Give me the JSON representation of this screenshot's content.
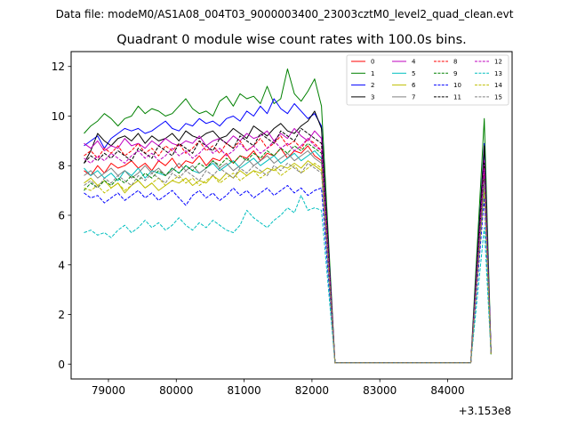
{
  "chart_data": {
    "type": "line",
    "suptitle": "Data file: modeM0/AS1A08_004T03_9000003400_23003cztM0_level2_quad_clean.evt",
    "title": "Quadrant 0 module wise count rates with 100.0s bins.",
    "xlabel": "",
    "ylabel": "",
    "x_offset_label": "+3.153e8",
    "xlim": [
      78450,
      84950
    ],
    "ylim": [
      -0.6,
      12.6
    ],
    "x_ticks": [
      79000,
      80000,
      81000,
      82000,
      83000,
      84000
    ],
    "x_tick_labels": [
      "79000",
      "80000",
      "81000",
      "82000",
      "83000",
      "84000"
    ],
    "y_ticks": [
      0,
      2,
      4,
      6,
      8,
      10,
      12
    ],
    "y_tick_labels": [
      "0",
      "2",
      "4",
      "6",
      "8",
      "10",
      "12"
    ],
    "legend": {
      "position": "top-right",
      "columns": 4
    },
    "x": [
      78640,
      78740,
      78840,
      78940,
      79040,
      79140,
      79240,
      79340,
      79440,
      79540,
      79640,
      79740,
      79840,
      79940,
      80040,
      80140,
      80240,
      80340,
      80440,
      80540,
      80640,
      80740,
      80840,
      80940,
      81040,
      81140,
      81240,
      81340,
      81440,
      81540,
      81640,
      81740,
      81840,
      81940,
      82040,
      82140,
      82340,
      84340,
      84540,
      84640
    ],
    "series": [
      {
        "name": "0",
        "color": "#ff0000",
        "dash": false,
        "values": [
          7.8,
          7.6,
          8.0,
          7.7,
          8.1,
          7.9,
          8.0,
          8.2,
          7.9,
          8.1,
          7.8,
          8.2,
          8.0,
          8.3,
          7.9,
          8.2,
          8.1,
          8.4,
          8.0,
          8.3,
          8.2,
          8.5,
          8.1,
          8.4,
          8.3,
          8.6,
          8.2,
          8.5,
          8.4,
          8.7,
          8.3,
          8.6,
          8.5,
          8.8,
          8.4,
          8.2,
          0.05,
          0.05,
          7.8,
          0.5
        ]
      },
      {
        "name": "1",
        "color": "#008000",
        "dash": false,
        "values": [
          9.3,
          9.6,
          9.8,
          10.1,
          9.9,
          9.6,
          9.9,
          10.0,
          10.4,
          10.1,
          10.3,
          10.2,
          10.0,
          10.1,
          10.4,
          10.7,
          10.3,
          10.1,
          10.2,
          10.0,
          10.6,
          10.8,
          10.4,
          10.9,
          10.7,
          10.8,
          10.5,
          11.2,
          10.5,
          10.7,
          11.9,
          10.9,
          10.6,
          11.0,
          11.5,
          10.4,
          0.05,
          0.05,
          9.9,
          0.5
        ]
      },
      {
        "name": "2",
        "color": "#0000ff",
        "dash": false,
        "values": [
          8.8,
          9.0,
          9.2,
          8.7,
          9.1,
          9.3,
          9.5,
          9.4,
          9.5,
          9.3,
          9.4,
          9.6,
          9.8,
          9.5,
          9.4,
          9.7,
          9.6,
          9.9,
          9.7,
          9.8,
          9.6,
          9.9,
          10.0,
          9.8,
          10.2,
          10.0,
          10.4,
          10.1,
          10.7,
          10.3,
          10.1,
          10.5,
          10.2,
          9.9,
          10.1,
          9.6,
          0.05,
          0.05,
          8.9,
          0.5
        ]
      },
      {
        "name": "3",
        "color": "#000000",
        "dash": false,
        "values": [
          8.1,
          8.6,
          9.3,
          9.0,
          8.8,
          9.1,
          9.2,
          9.0,
          9.3,
          8.9,
          9.2,
          9.0,
          9.1,
          9.3,
          9.0,
          9.4,
          9.2,
          9.1,
          9.3,
          9.4,
          9.1,
          9.2,
          9.5,
          9.3,
          9.1,
          9.6,
          9.4,
          9.2,
          9.5,
          9.7,
          9.4,
          9.3,
          9.6,
          9.8,
          10.2,
          9.5,
          0.05,
          0.05,
          8.8,
          0.4
        ]
      },
      {
        "name": "4",
        "color": "#bf00bf",
        "dash": false,
        "values": [
          8.9,
          8.7,
          9.0,
          8.6,
          8.8,
          8.7,
          9.1,
          8.8,
          8.9,
          8.7,
          9.0,
          8.8,
          9.1,
          8.9,
          8.8,
          9.0,
          8.9,
          9.2,
          8.8,
          9.0,
          9.1,
          8.9,
          9.2,
          9.0,
          9.3,
          9.1,
          9.2,
          9.4,
          9.0,
          9.3,
          9.1,
          9.5,
          9.2,
          9.0,
          9.4,
          9.1,
          0.05,
          0.05,
          8.2,
          0.5
        ]
      },
      {
        "name": "5",
        "color": "#00bfbf",
        "dash": false,
        "values": [
          7.9,
          7.6,
          7.8,
          7.5,
          7.7,
          7.4,
          7.8,
          7.6,
          7.9,
          7.5,
          7.8,
          7.7,
          7.6,
          7.9,
          7.7,
          8.0,
          7.8,
          7.7,
          7.9,
          8.1,
          7.8,
          8.0,
          8.2,
          7.9,
          8.1,
          8.3,
          8.0,
          8.2,
          8.4,
          8.1,
          8.3,
          8.5,
          8.2,
          8.4,
          8.6,
          8.3,
          0.05,
          0.05,
          7.5,
          0.4
        ]
      },
      {
        "name": "6",
        "color": "#bfbf00",
        "dash": false,
        "values": [
          7.3,
          7.5,
          7.2,
          7.4,
          7.1,
          7.3,
          6.9,
          7.2,
          7.4,
          7.1,
          7.3,
          7.0,
          7.2,
          7.4,
          7.3,
          7.5,
          7.2,
          7.4,
          7.3,
          7.6,
          7.4,
          7.7,
          7.5,
          7.8,
          7.6,
          7.8,
          7.7,
          7.9,
          7.8,
          8.0,
          7.9,
          8.1,
          7.9,
          8.2,
          8.0,
          7.8,
          0.05,
          0.05,
          7.2,
          0.4
        ]
      },
      {
        "name": "7",
        "color": "#808080",
        "dash": false,
        "values": [
          7.6,
          7.8,
          7.5,
          7.7,
          7.9,
          7.6,
          7.8,
          7.5,
          7.7,
          8.0,
          7.7,
          7.9,
          7.6,
          7.8,
          8.1,
          7.8,
          8.0,
          7.7,
          7.9,
          8.2,
          7.9,
          8.1,
          7.8,
          8.0,
          8.3,
          8.0,
          8.2,
          8.4,
          8.1,
          8.3,
          8.5,
          8.2,
          8.4,
          8.6,
          8.3,
          8.1,
          0.05,
          0.05,
          7.4,
          0.4
        ]
      },
      {
        "name": "8",
        "color": "#ff0000",
        "dash": true,
        "values": [
          8.4,
          8.6,
          8.3,
          8.7,
          8.5,
          8.8,
          8.4,
          8.6,
          8.9,
          8.5,
          8.7,
          8.4,
          8.8,
          8.6,
          8.9,
          8.5,
          8.7,
          9.0,
          8.6,
          8.8,
          8.5,
          8.9,
          8.7,
          9.0,
          8.6,
          8.8,
          9.1,
          8.7,
          8.9,
          9.2,
          8.8,
          9.0,
          8.7,
          9.1,
          8.9,
          8.6,
          0.05,
          0.05,
          8.0,
          0.4
        ]
      },
      {
        "name": "9",
        "color": "#008000",
        "dash": true,
        "values": [
          7.0,
          7.3,
          7.1,
          7.4,
          7.2,
          7.5,
          7.3,
          7.6,
          7.4,
          7.7,
          7.5,
          7.8,
          7.6,
          7.9,
          7.7,
          8.0,
          7.8,
          8.1,
          7.9,
          8.2,
          8.0,
          8.3,
          8.1,
          8.4,
          8.2,
          8.5,
          8.3,
          8.6,
          8.4,
          8.7,
          8.5,
          8.8,
          8.6,
          8.9,
          8.7,
          8.5,
          0.05,
          0.05,
          7.6,
          0.4
        ]
      },
      {
        "name": "10",
        "color": "#0000ff",
        "dash": true,
        "values": [
          6.9,
          6.7,
          6.8,
          6.5,
          6.7,
          6.9,
          6.6,
          6.8,
          7.0,
          6.7,
          6.9,
          6.6,
          6.8,
          7.0,
          6.7,
          6.4,
          6.8,
          7.0,
          6.7,
          6.9,
          6.6,
          6.8,
          7.1,
          6.8,
          7.0,
          6.7,
          6.9,
          7.1,
          6.8,
          7.0,
          7.2,
          6.9,
          7.1,
          6.8,
          7.0,
          7.1,
          0.05,
          0.05,
          6.7,
          0.4
        ]
      },
      {
        "name": "11",
        "color": "#000000",
        "dash": true,
        "values": [
          8.1,
          8.4,
          8.2,
          8.5,
          8.3,
          8.6,
          8.4,
          8.2,
          8.7,
          8.5,
          8.3,
          8.8,
          8.6,
          8.4,
          8.9,
          8.7,
          8.5,
          9.0,
          8.8,
          8.6,
          9.1,
          8.9,
          8.7,
          9.2,
          9.0,
          8.8,
          9.3,
          9.1,
          8.9,
          9.4,
          9.2,
          9.0,
          9.5,
          9.3,
          9.1,
          8.9,
          0.05,
          0.05,
          8.1,
          0.4
        ]
      },
      {
        "name": "12",
        "color": "#bf00bf",
        "dash": true,
        "values": [
          8.3,
          8.1,
          8.4,
          8.2,
          8.5,
          8.3,
          8.1,
          8.4,
          8.6,
          8.3,
          8.5,
          8.2,
          8.4,
          8.7,
          8.4,
          8.6,
          8.3,
          8.5,
          8.8,
          8.5,
          8.7,
          8.4,
          8.6,
          8.9,
          8.6,
          8.8,
          8.5,
          8.7,
          9.0,
          8.7,
          8.9,
          8.6,
          8.8,
          9.1,
          8.8,
          8.6,
          0.05,
          0.05,
          7.9,
          0.4
        ]
      },
      {
        "name": "13",
        "color": "#00bfbf",
        "dash": true,
        "values": [
          5.3,
          5.4,
          5.2,
          5.3,
          5.1,
          5.4,
          5.6,
          5.3,
          5.5,
          5.8,
          5.5,
          5.7,
          5.4,
          5.6,
          5.9,
          5.6,
          5.4,
          5.7,
          5.5,
          5.8,
          5.6,
          5.4,
          5.3,
          5.6,
          6.2,
          5.9,
          5.7,
          5.5,
          5.8,
          6.0,
          6.3,
          6.1,
          6.8,
          6.2,
          6.3,
          6.2,
          0.05,
          0.05,
          5.5,
          0.4
        ]
      },
      {
        "name": "14",
        "color": "#bfbf00",
        "dash": true,
        "values": [
          7.1,
          7.0,
          7.2,
          6.9,
          7.1,
          7.3,
          7.0,
          7.2,
          7.4,
          7.1,
          7.3,
          7.5,
          7.2,
          7.4,
          7.6,
          7.3,
          7.5,
          7.2,
          7.4,
          7.6,
          7.3,
          7.5,
          7.7,
          7.4,
          7.6,
          7.8,
          7.5,
          7.7,
          7.9,
          7.6,
          7.8,
          8.0,
          7.7,
          7.9,
          8.1,
          7.9,
          0.05,
          0.05,
          7.1,
          0.4
        ]
      },
      {
        "name": "15",
        "color": "#808080",
        "dash": true,
        "values": [
          7.2,
          7.4,
          7.1,
          7.5,
          7.3,
          7.6,
          7.4,
          7.2,
          7.6,
          7.4,
          7.7,
          7.5,
          7.3,
          7.7,
          7.5,
          7.8,
          7.6,
          7.4,
          7.8,
          7.6,
          7.9,
          7.7,
          7.5,
          7.9,
          7.7,
          8.0,
          7.8,
          7.6,
          8.0,
          7.8,
          8.1,
          7.9,
          7.7,
          8.1,
          7.9,
          7.7,
          0.05,
          0.05,
          7.3,
          0.4
        ]
      }
    ]
  }
}
